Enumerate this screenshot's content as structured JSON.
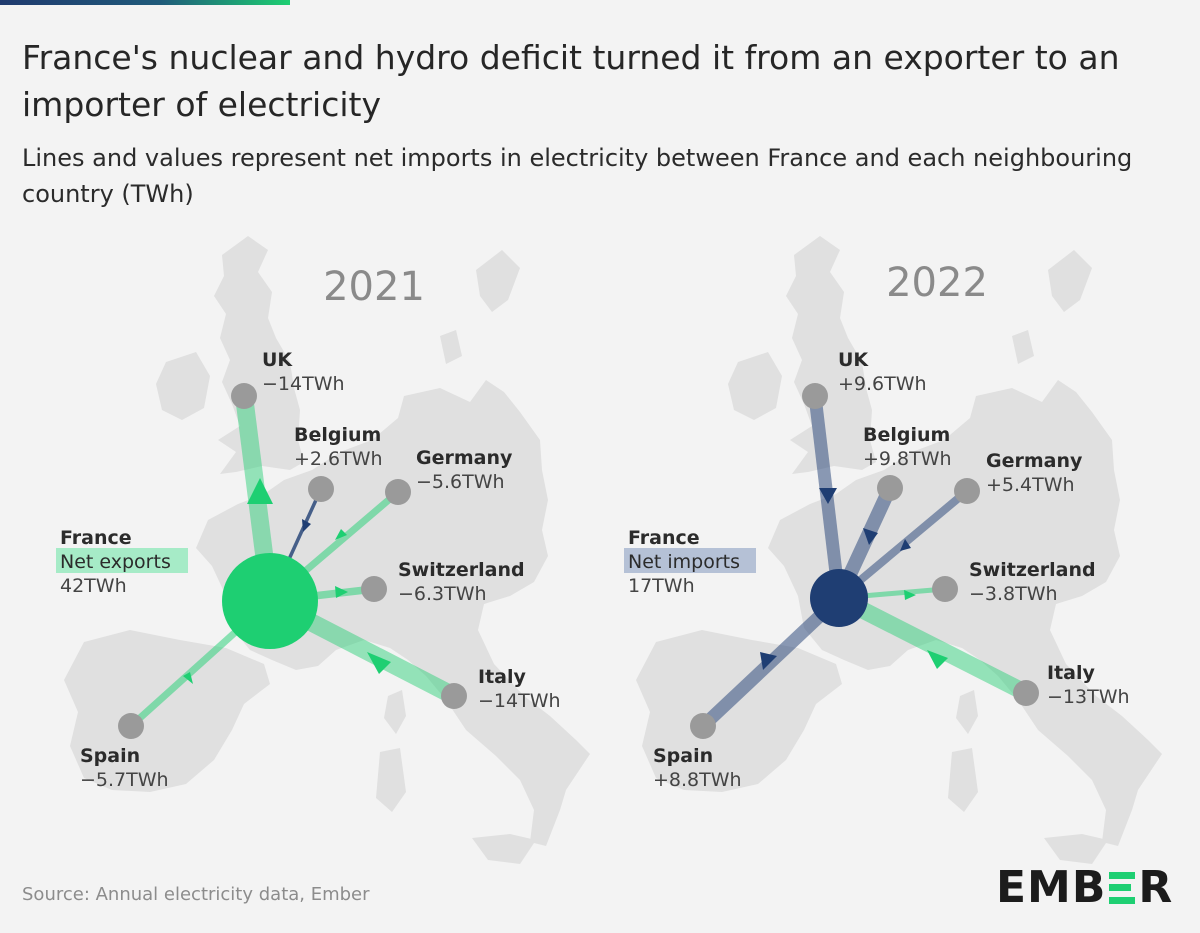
{
  "title": "France's nuclear and hydro deficit turned it from an exporter to an importer of electricity",
  "subtitle": "Lines and values represent net imports in electricity between France and each neighbouring country (TWh)",
  "source": "Source: Annual electricity data, Ember",
  "logo": {
    "part1": "EMB",
    "part2": "R"
  },
  "colors": {
    "export": "#1ecf72",
    "import": "#1f3e73",
    "land": "#e0e0e0",
    "node": "#9a9a9a"
  },
  "maps": [
    {
      "year": "2021",
      "france": {
        "label": "France",
        "status": "Net exports",
        "value": "42TWh"
      },
      "countries": [
        {
          "name": "UK",
          "value": "−14TWh"
        },
        {
          "name": "Belgium",
          "value": "+2.6TWh"
        },
        {
          "name": "Germany",
          "value": "−5.6TWh"
        },
        {
          "name": "Switzerland",
          "value": "−6.3TWh"
        },
        {
          "name": "Italy",
          "value": "−14TWh"
        },
        {
          "name": "Spain",
          "value": "−5.7TWh"
        }
      ]
    },
    {
      "year": "2022",
      "france": {
        "label": "France",
        "status": "Net imports",
        "value": "17TWh"
      },
      "countries": [
        {
          "name": "UK",
          "value": "+9.6TWh"
        },
        {
          "name": "Belgium",
          "value": "+9.8TWh"
        },
        {
          "name": "Germany",
          "value": "+5.4TWh"
        },
        {
          "name": "Switzerland",
          "value": "−3.8TWh"
        },
        {
          "name": "Italy",
          "value": "−13TWh"
        },
        {
          "name": "Spain",
          "value": "+8.8TWh"
        }
      ]
    }
  ]
}
